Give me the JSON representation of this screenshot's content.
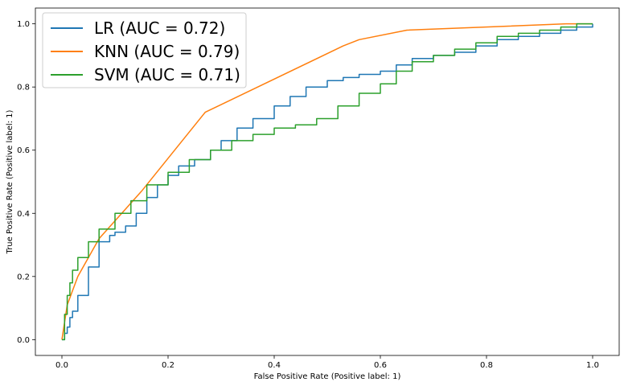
{
  "chart_data": {
    "type": "line",
    "title": "",
    "xlabel": "False Positive Rate (Positive label: 1)",
    "ylabel": "True Positive Rate (Positive label: 1)",
    "xlim": [
      -0.05,
      1.05
    ],
    "ylim": [
      -0.05,
      1.05
    ],
    "xticks": [
      0.0,
      0.2,
      0.4,
      0.6,
      0.8,
      1.0
    ],
    "yticks": [
      0.0,
      0.2,
      0.4,
      0.6,
      0.8,
      1.0
    ],
    "xtick_labels": [
      "0.0",
      "0.2",
      "0.4",
      "0.6",
      "0.8",
      "1.0"
    ],
    "ytick_labels": [
      "0.0",
      "0.2",
      "0.4",
      "0.6",
      "0.8",
      "1.0"
    ],
    "grid": false,
    "legend_position": "top-left",
    "series": [
      {
        "name": "LR (AUC = 0.72)",
        "color": "#1f77b4",
        "x": [
          0.0,
          0.005,
          0.01,
          0.015,
          0.02,
          0.03,
          0.05,
          0.07,
          0.09,
          0.1,
          0.12,
          0.14,
          0.16,
          0.18,
          0.2,
          0.22,
          0.25,
          0.28,
          0.3,
          0.33,
          0.36,
          0.4,
          0.43,
          0.46,
          0.5,
          0.53,
          0.56,
          0.6,
          0.63,
          0.66,
          0.7,
          0.74,
          0.78,
          0.82,
          0.86,
          0.9,
          0.94,
          0.97,
          1.0
        ],
        "y": [
          0.0,
          0.02,
          0.04,
          0.07,
          0.09,
          0.14,
          0.23,
          0.31,
          0.33,
          0.34,
          0.36,
          0.4,
          0.45,
          0.49,
          0.52,
          0.55,
          0.57,
          0.6,
          0.63,
          0.67,
          0.7,
          0.74,
          0.77,
          0.8,
          0.82,
          0.83,
          0.84,
          0.85,
          0.87,
          0.89,
          0.9,
          0.91,
          0.93,
          0.95,
          0.96,
          0.97,
          0.98,
          0.99,
          1.0
        ]
      },
      {
        "name": "KNN (AUC = 0.79)",
        "color": "#ff7f0e",
        "x": [
          0.0,
          0.01,
          0.03,
          0.07,
          0.15,
          0.27,
          0.53,
          0.56,
          0.65,
          0.95,
          1.0
        ],
        "y": [
          0.0,
          0.11,
          0.2,
          0.32,
          0.47,
          0.72,
          0.93,
          0.95,
          0.98,
          1.0,
          1.0
        ]
      },
      {
        "name": "SVM (AUC = 0.71)",
        "color": "#2ca02c",
        "x": [
          0.0,
          0.005,
          0.01,
          0.015,
          0.02,
          0.03,
          0.05,
          0.07,
          0.1,
          0.13,
          0.16,
          0.2,
          0.24,
          0.28,
          0.32,
          0.36,
          0.4,
          0.44,
          0.48,
          0.52,
          0.56,
          0.6,
          0.63,
          0.66,
          0.7,
          0.74,
          0.78,
          0.82,
          0.86,
          0.9,
          0.94,
          0.97,
          1.0
        ],
        "y": [
          0.0,
          0.08,
          0.14,
          0.18,
          0.22,
          0.26,
          0.31,
          0.35,
          0.4,
          0.44,
          0.49,
          0.53,
          0.57,
          0.6,
          0.63,
          0.65,
          0.67,
          0.68,
          0.7,
          0.74,
          0.78,
          0.81,
          0.85,
          0.88,
          0.9,
          0.92,
          0.94,
          0.96,
          0.97,
          0.98,
          0.99,
          1.0,
          1.0
        ]
      }
    ]
  }
}
